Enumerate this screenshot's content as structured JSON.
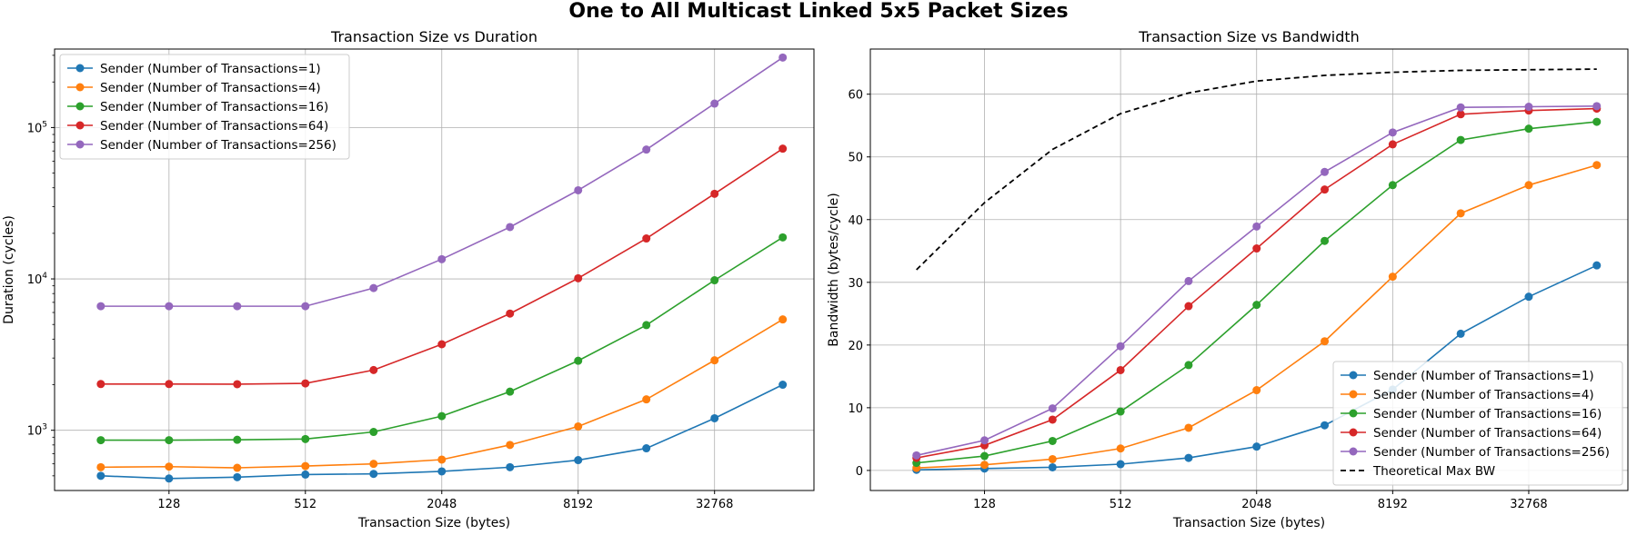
{
  "figure": {
    "title": "One to All Multicast Linked 5x5 Packet Sizes"
  },
  "colors": {
    "n1": "#1f77b4",
    "n4": "#ff7f0e",
    "n16": "#2ca02c",
    "n64": "#d62728",
    "n256": "#9467bd",
    "theory": "#000000",
    "grid": "#b0b0b0"
  },
  "chart_data": [
    {
      "type": "line",
      "title": "Transaction Size vs Duration",
      "xlabel": "Transaction Size (bytes)",
      "ylabel": "Duration (cycles)",
      "xscale": "log2",
      "yscale": "log",
      "xlim": [
        40,
        90000
      ],
      "ylim": [
        400,
        330000
      ],
      "x": [
        64,
        128,
        256,
        512,
        1024,
        2048,
        4096,
        8192,
        16384,
        32768,
        65536
      ],
      "xticks": [
        128,
        512,
        2048,
        8192,
        32768
      ],
      "xtick_labels": [
        "128",
        "512",
        "2048",
        "8192",
        "32768"
      ],
      "yticks": [
        1000,
        10000,
        100000
      ],
      "ytick_labels": [
        {
          "base": "10",
          "exp": "3"
        },
        {
          "base": "10",
          "exp": "4"
        },
        {
          "base": "10",
          "exp": "5"
        }
      ],
      "grid": true,
      "legend_position": "upper-left",
      "series": [
        {
          "name": "Sender (Number of Transactions=1)",
          "color": "n1",
          "marker": true,
          "values": [
            500,
            480,
            490,
            510,
            515,
            535,
            570,
            635,
            760,
            1200,
            2000
          ]
        },
        {
          "name": "Sender (Number of Transactions=4)",
          "color": "n4",
          "marker": true,
          "values": [
            570,
            575,
            565,
            580,
            600,
            640,
            800,
            1060,
            1600,
            2900,
            5400
          ]
        },
        {
          "name": "Sender (Number of Transactions=16)",
          "color": "n16",
          "marker": true,
          "values": [
            860,
            860,
            865,
            875,
            975,
            1240,
            1800,
            2880,
            4950,
            9800,
            18800
          ]
        },
        {
          "name": "Sender (Number of Transactions=64)",
          "color": "n64",
          "marker": true,
          "values": [
            2020,
            2020,
            2015,
            2040,
            2500,
            3700,
            5900,
            10100,
            18500,
            36500,
            72500
          ]
        },
        {
          "name": "Sender (Number of Transactions=256)",
          "color": "n256",
          "marker": true,
          "values": [
            6600,
            6600,
            6600,
            6600,
            8700,
            13500,
            22000,
            38500,
            71500,
            144000,
            290000
          ]
        }
      ]
    },
    {
      "type": "line",
      "title": "Transaction Size vs Bandwidth",
      "xlabel": "Transaction Size (bytes)",
      "ylabel": "Bandwidth (bytes/cycle)",
      "xscale": "log2",
      "yscale": "linear",
      "xlim": [
        40,
        90000
      ],
      "ylim": [
        -3.2,
        67.2
      ],
      "x": [
        64,
        128,
        256,
        512,
        1024,
        2048,
        4096,
        8192,
        16384,
        32768,
        65536
      ],
      "xticks": [
        128,
        512,
        2048,
        8192,
        32768
      ],
      "xtick_labels": [
        "128",
        "512",
        "2048",
        "8192",
        "32768"
      ],
      "yticks": [
        0,
        10,
        20,
        30,
        40,
        50,
        60
      ],
      "ytick_labels": [
        "0",
        "10",
        "20",
        "30",
        "40",
        "50",
        "60"
      ],
      "grid": true,
      "legend_position": "lower-right",
      "series": [
        {
          "name": "Sender (Number of Transactions=1)",
          "color": "n1",
          "marker": true,
          "values": [
            0.1,
            0.3,
            0.5,
            1.0,
            2.0,
            3.8,
            7.2,
            12.9,
            21.8,
            27.7,
            32.7
          ]
        },
        {
          "name": "Sender (Number of Transactions=4)",
          "color": "n4",
          "marker": true,
          "values": [
            0.4,
            0.9,
            1.8,
            3.5,
            6.8,
            12.8,
            20.6,
            30.9,
            41.0,
            45.5,
            48.7
          ]
        },
        {
          "name": "Sender (Number of Transactions=16)",
          "color": "n16",
          "marker": true,
          "values": [
            1.2,
            2.3,
            4.7,
            9.4,
            16.8,
            26.4,
            36.6,
            45.5,
            52.7,
            54.5,
            55.6
          ]
        },
        {
          "name": "Sender (Number of Transactions=64)",
          "color": "n64",
          "marker": true,
          "values": [
            2.0,
            4.0,
            8.1,
            16.0,
            26.2,
            35.4,
            44.8,
            52.0,
            56.8,
            57.4,
            57.7
          ]
        },
        {
          "name": "Sender (Number of Transactions=256)",
          "color": "n256",
          "marker": true,
          "values": [
            2.4,
            4.8,
            9.9,
            19.8,
            30.2,
            38.9,
            47.6,
            53.9,
            57.9,
            58.0,
            58.1
          ]
        },
        {
          "name": "Theoretical Max BW",
          "color": "theory",
          "marker": false,
          "dashed": true,
          "values": [
            32.0,
            42.7,
            51.2,
            56.9,
            60.2,
            62.1,
            63.0,
            63.5,
            63.8,
            63.9,
            64.0
          ]
        }
      ]
    }
  ]
}
